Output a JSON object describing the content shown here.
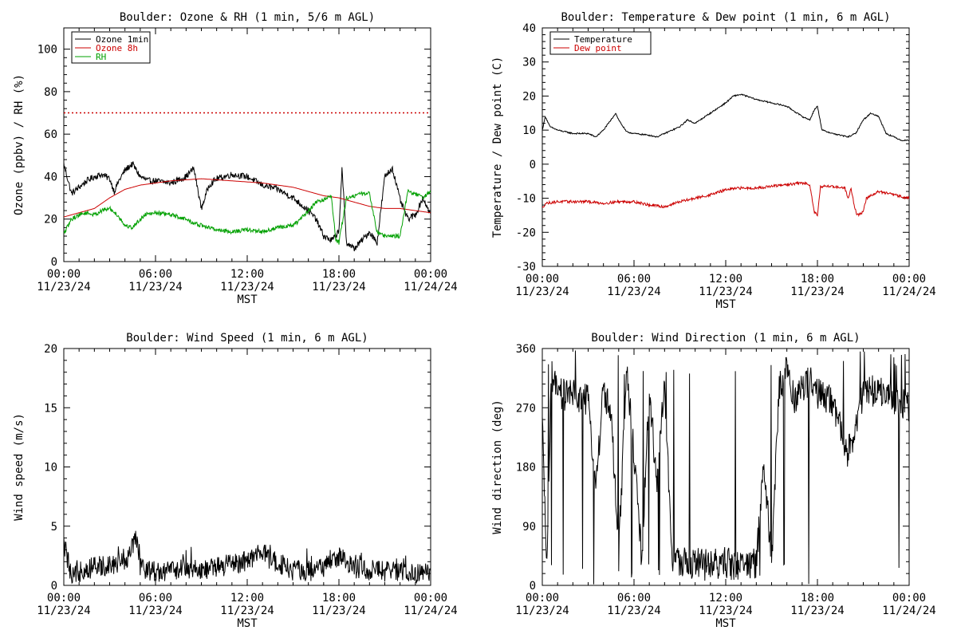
{
  "chart_data": [
    {
      "id": "ozone_rh",
      "type": "line",
      "title": "Boulder: Ozone & RH (1 min, 5/6 m AGL)",
      "xlabel": "MST",
      "ylabel": "Ozone (ppbv) / RH (%)",
      "xlim": [
        0,
        24
      ],
      "ylim": [
        0,
        110
      ],
      "yticks": [
        "0",
        "20",
        "40",
        "60",
        "80",
        "100"
      ],
      "ytick_values": [
        0,
        20,
        40,
        60,
        80,
        100
      ],
      "xticks": [
        {
          "time": "00:00",
          "date": "11/23/24",
          "hour": 0
        },
        {
          "time": "06:00",
          "date": "11/23/24",
          "hour": 6
        },
        {
          "time": "12:00",
          "date": "11/23/24",
          "hour": 12
        },
        {
          "time": "18:00",
          "date": "11/23/24",
          "hour": 18
        },
        {
          "time": "00:00",
          "date": "11/24/24",
          "hour": 24
        }
      ],
      "grid": false,
      "legend": "top-left",
      "reference_line": {
        "y": 70,
        "color": "#cc0000",
        "style": "dotted"
      },
      "series": [
        {
          "name": "Ozone 1min",
          "color": "#000000",
          "noise": 1.5,
          "x": [
            0,
            0.5,
            1,
            1.5,
            2,
            2.5,
            3,
            3.3,
            3.6,
            4,
            4.5,
            5,
            5.5,
            6,
            7,
            8,
            8.5,
            9,
            9.5,
            10,
            11,
            12,
            13,
            14,
            15,
            15.5,
            16,
            16.5,
            17,
            17.5,
            17.8,
            18,
            18.2,
            18.5,
            19,
            19.5,
            20,
            20.5,
            21,
            21.5,
            22,
            22.5,
            23,
            23.5,
            24
          ],
          "y": [
            46,
            32,
            35,
            38,
            40,
            41,
            39,
            33,
            38,
            43,
            46,
            40,
            38,
            38,
            37,
            40,
            44,
            25,
            36,
            39,
            41,
            40,
            36,
            34,
            30,
            27,
            24,
            20,
            12,
            10,
            12,
            15,
            43,
            9,
            6,
            10,
            14,
            9,
            40,
            44,
            29,
            20,
            22,
            30,
            22
          ]
        },
        {
          "name": "Ozone 8h",
          "color": "#cc0000",
          "noise": 0,
          "x": [
            0,
            1,
            2,
            3,
            4,
            5,
            6,
            7,
            8,
            9,
            10,
            11,
            12,
            13,
            14,
            15,
            16,
            17,
            18,
            19,
            20,
            21,
            22,
            23,
            24
          ],
          "y": [
            21,
            23,
            25,
            30,
            34,
            36,
            37,
            38,
            38.5,
            39,
            38.5,
            38,
            37.5,
            37,
            36,
            35,
            33,
            31,
            30,
            28,
            26,
            25,
            25,
            24,
            23
          ]
        },
        {
          "name": "RH",
          "color": "#00a000",
          "noise": 1.0,
          "x": [
            0,
            0.5,
            1,
            1.5,
            2,
            2.5,
            3,
            3.5,
            4,
            4.5,
            5,
            5.5,
            6,
            7,
            8,
            8.5,
            9,
            10,
            11,
            12,
            13,
            14,
            15,
            15.5,
            16,
            16.5,
            17,
            17.5,
            17.8,
            18,
            18.5,
            19,
            19.5,
            20,
            20.5,
            21,
            21.5,
            22,
            22.5,
            23,
            23.5,
            24
          ],
          "y": [
            13,
            20,
            22,
            23,
            22,
            24,
            25,
            22,
            17,
            16,
            20,
            23,
            23,
            22,
            20,
            18,
            17,
            15,
            14,
            15,
            14,
            16,
            17,
            20,
            24,
            28,
            29,
            31,
            10,
            9,
            30,
            31,
            32,
            32,
            14,
            12,
            12,
            12,
            33,
            32,
            30,
            33
          ]
        }
      ]
    },
    {
      "id": "temp_dew",
      "type": "line",
      "title": "Boulder: Temperature & Dew point (1 min, 6 m AGL)",
      "xlabel": "MST",
      "ylabel": "Temperature / Dew point (C)",
      "xlim": [
        0,
        24
      ],
      "ylim": [
        -30,
        40
      ],
      "yticks": [
        "-30",
        "-20",
        "-10",
        "0",
        "10",
        "20",
        "30",
        "40"
      ],
      "ytick_values": [
        -30,
        -20,
        -10,
        0,
        10,
        20,
        30,
        40
      ],
      "xticks": [
        {
          "time": "00:00",
          "date": "11/23/24",
          "hour": 0
        },
        {
          "time": "06:00",
          "date": "11/23/24",
          "hour": 6
        },
        {
          "time": "12:00",
          "date": "11/23/24",
          "hour": 12
        },
        {
          "time": "18:00",
          "date": "11/23/24",
          "hour": 18
        },
        {
          "time": "00:00",
          "date": "11/24/24",
          "hour": 24
        }
      ],
      "grid": false,
      "legend": "top-left",
      "series": [
        {
          "name": "Temperature",
          "color": "#000000",
          "noise": 0.2,
          "x": [
            0,
            0.2,
            0.5,
            1,
            2,
            3,
            3.5,
            4,
            4.5,
            4.8,
            5,
            5.5,
            6,
            7,
            7.5,
            8,
            9,
            9.5,
            10,
            11,
            12,
            12.5,
            13,
            14,
            15,
            16,
            17,
            17.5,
            17.8,
            18,
            18.3,
            19,
            20,
            20.5,
            21,
            21.5,
            22,
            22.5,
            23,
            23.5,
            24
          ],
          "y": [
            10,
            14,
            11,
            10,
            9,
            9,
            8,
            10,
            13,
            15,
            13,
            9.5,
            9,
            8.5,
            8,
            9,
            11,
            13,
            12,
            15,
            18,
            20,
            20.5,
            19,
            18,
            17,
            14,
            13,
            16,
            17,
            10,
            9,
            8,
            9,
            13,
            15,
            14,
            9,
            8,
            7,
            7
          ]
        },
        {
          "name": "Dew point",
          "color": "#cc0000",
          "noise": 0.4,
          "x": [
            0,
            0.2,
            1,
            2,
            3,
            4,
            5,
            6,
            7,
            8,
            9,
            10,
            11,
            12,
            13,
            14,
            15,
            16,
            17,
            17.5,
            17.8,
            18,
            18.2,
            19,
            19.8,
            20,
            20.2,
            20.4,
            20.6,
            21,
            21.2,
            22,
            23,
            24
          ],
          "y": [
            -13,
            -11.5,
            -11,
            -11,
            -11,
            -11.5,
            -11,
            -11,
            -12,
            -12.5,
            -11,
            -10,
            -9,
            -7.5,
            -7,
            -7,
            -6.5,
            -6,
            -5.5,
            -6,
            -14,
            -15,
            -6.5,
            -6.5,
            -7,
            -10,
            -7,
            -12,
            -15,
            -14,
            -10,
            -8,
            -9,
            -10
          ]
        }
      ]
    },
    {
      "id": "wind_speed",
      "type": "line",
      "title": "Boulder: Wind Speed (1 min, 6 m AGL)",
      "xlabel": "MST",
      "ylabel": "Wind speed (m/s)",
      "xlim": [
        0,
        24
      ],
      "ylim": [
        0,
        20
      ],
      "yticks": [
        "0",
        "5",
        "10",
        "15",
        "20"
      ],
      "ytick_values": [
        0,
        5,
        10,
        15,
        20
      ],
      "xticks": [
        {
          "time": "00:00",
          "date": "11/23/24",
          "hour": 0
        },
        {
          "time": "06:00",
          "date": "11/23/24",
          "hour": 6
        },
        {
          "time": "12:00",
          "date": "11/23/24",
          "hour": 12
        },
        {
          "time": "18:00",
          "date": "11/23/24",
          "hour": 18
        },
        {
          "time": "00:00",
          "date": "11/24/24",
          "hour": 24
        }
      ],
      "grid": false,
      "series": [
        {
          "color": "#000000",
          "noise": 0.9,
          "x": [
            0,
            0.2,
            0.5,
            1,
            2,
            3,
            4,
            4.5,
            4.8,
            5,
            6,
            7,
            8,
            9,
            10,
            11,
            12,
            12.5,
            13,
            13.5,
            14,
            15,
            16,
            17,
            17.5,
            18,
            18.5,
            19,
            20,
            21,
            22,
            23,
            24
          ],
          "y": [
            3.5,
            2.5,
            0.5,
            1.2,
            1.5,
            1.8,
            2,
            3.5,
            3.8,
            1.5,
            1.2,
            1.2,
            1.5,
            1.3,
            1.5,
            1.8,
            2,
            2.5,
            2.8,
            2.2,
            1.8,
            1.3,
            1.2,
            1.5,
            2,
            2.4,
            1.7,
            1.5,
            1.3,
            1.2,
            1.1,
            1,
            1
          ]
        }
      ]
    },
    {
      "id": "wind_dir",
      "type": "line",
      "title": "Boulder: Wind Direction (1 min, 6 m AGL)",
      "xlabel": "MST",
      "ylabel": "Wind direction (deg)",
      "xlim": [
        0,
        24
      ],
      "ylim": [
        0,
        360
      ],
      "yticks": [
        "0",
        "90",
        "180",
        "270",
        "360"
      ],
      "ytick_values": [
        0,
        90,
        180,
        270,
        360
      ],
      "xticks": [
        {
          "time": "00:00",
          "date": "11/23/24",
          "hour": 0
        },
        {
          "time": "06:00",
          "date": "11/23/24",
          "hour": 6
        },
        {
          "time": "12:00",
          "date": "11/23/24",
          "hour": 12
        },
        {
          "time": "18:00",
          "date": "11/23/24",
          "hour": 18
        },
        {
          "time": "00:00",
          "date": "11/24/24",
          "hour": 24
        }
      ],
      "grid": false,
      "series": [
        {
          "color": "#000000",
          "noise": 25,
          "x": [
            0,
            0.3,
            0.6,
            1,
            2,
            3,
            3.5,
            4,
            4.5,
            5,
            5.5,
            6,
            6.5,
            7,
            7.5,
            8,
            8.5,
            9,
            9.5,
            10,
            11,
            12,
            13,
            14,
            14.5,
            15,
            15.5,
            16,
            16.5,
            17,
            17.5,
            18,
            19,
            20,
            21,
            22,
            23,
            24
          ],
          "y": [
            240,
            30,
            320,
            290,
            290,
            280,
            150,
            300,
            260,
            40,
            330,
            200,
            40,
            300,
            150,
            310,
            30,
            40,
            30,
            35,
            30,
            35,
            30,
            35,
            180,
            40,
            300,
            330,
            280,
            300,
            310,
            290,
            280,
            200,
            290,
            300,
            280,
            270
          ]
        }
      ]
    }
  ]
}
